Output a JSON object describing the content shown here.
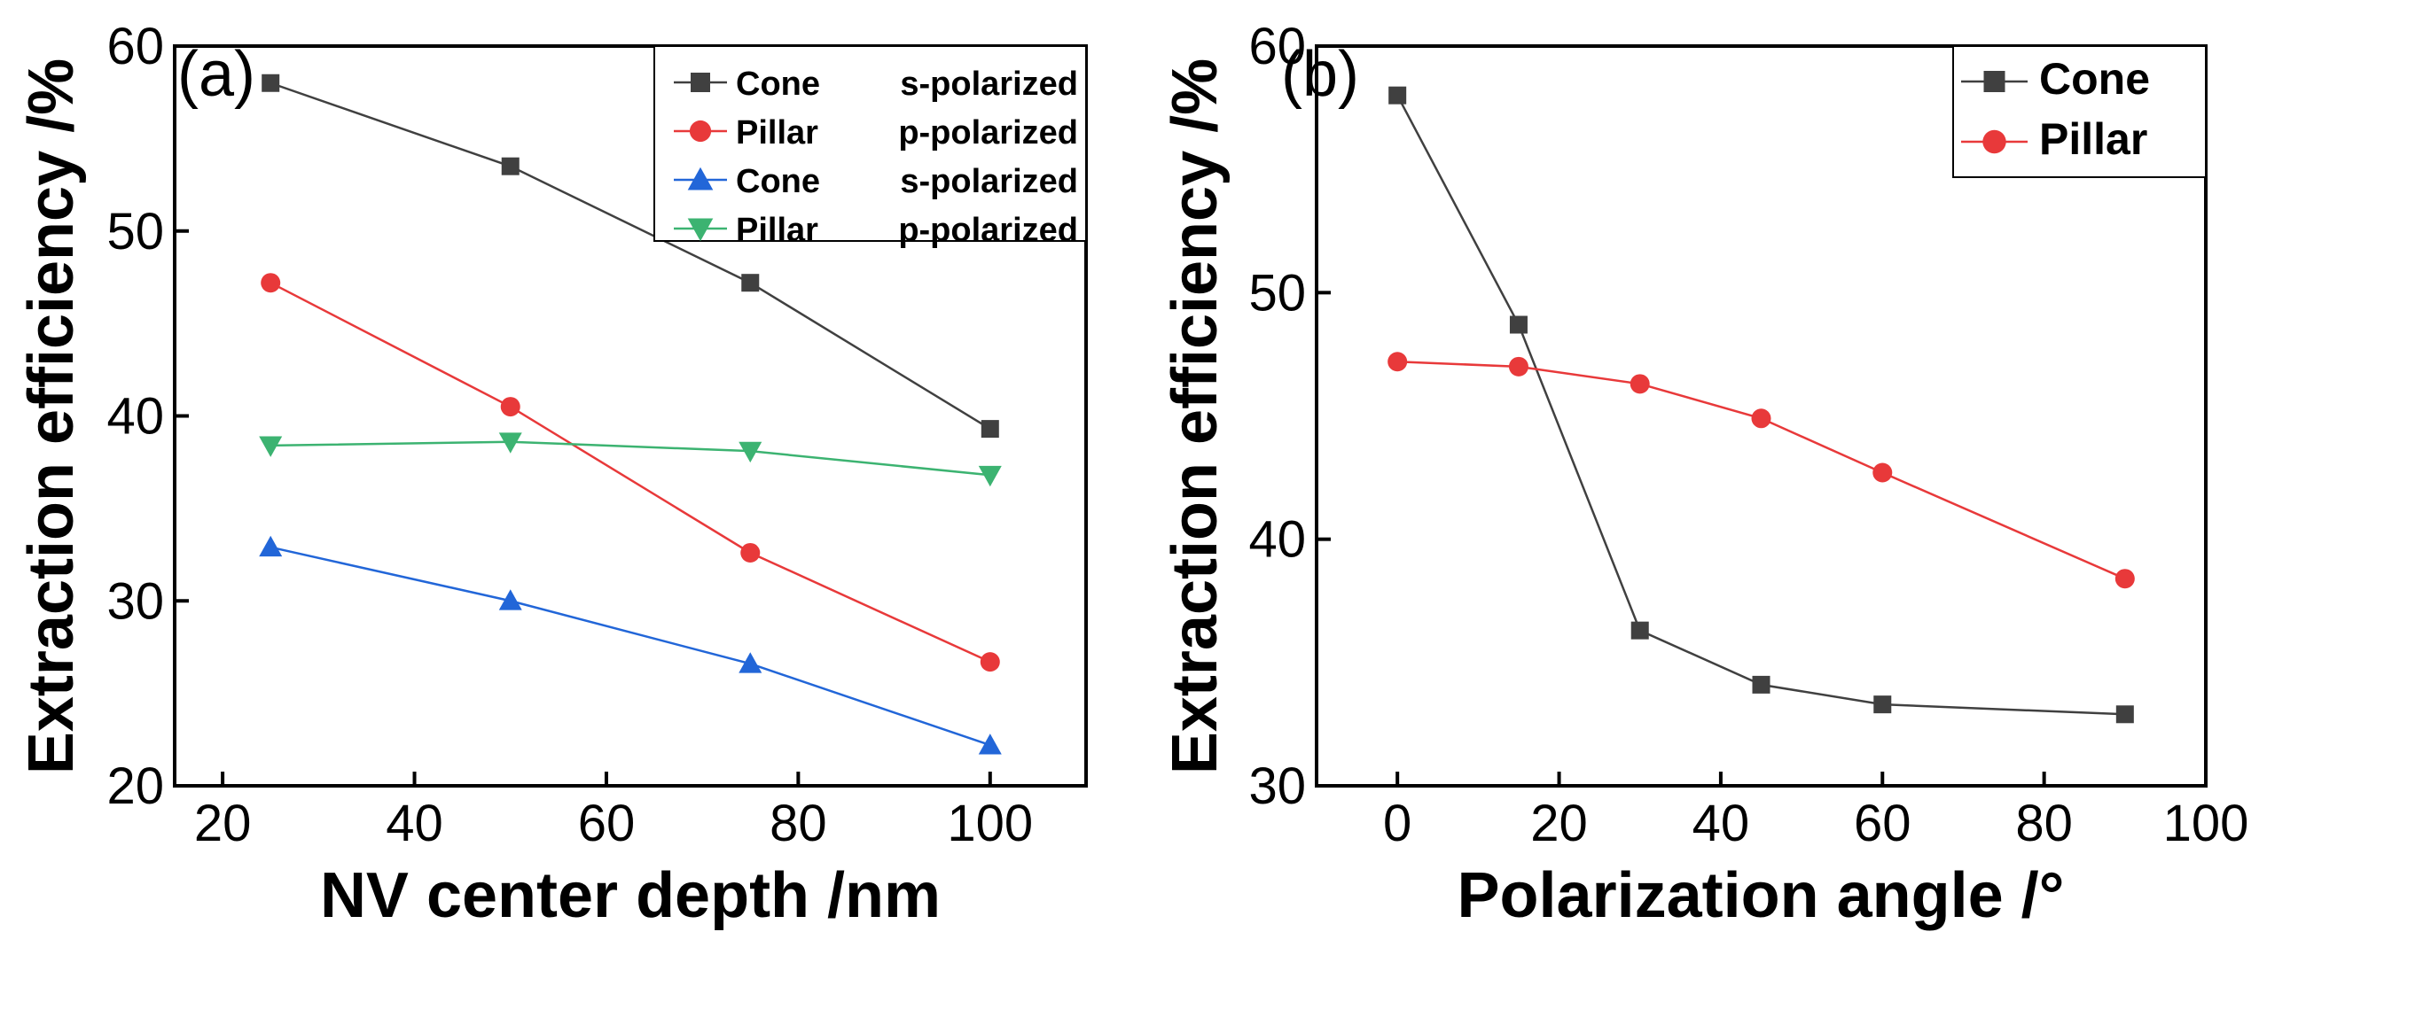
{
  "chart_data": [
    {
      "type": "line",
      "panel_label": "(a)",
      "xlabel": "NV center depth /nm",
      "ylabel": "Extraction efficiency /%",
      "xlim": [
        15,
        110
      ],
      "ylim": [
        20,
        60
      ],
      "xticks": [
        20,
        40,
        60,
        80,
        100
      ],
      "yticks": [
        20,
        30,
        40,
        50,
        60
      ],
      "xtick_labels": [
        "20",
        "40",
        "60",
        "80",
        "100"
      ],
      "ytick_labels": [
        "20",
        "30",
        "40",
        "50",
        "60"
      ],
      "legend_position": "top-right",
      "x": [
        25,
        50,
        75,
        100
      ],
      "series": [
        {
          "name": "Cone",
          "pol": "s-polarized",
          "color": "#404040",
          "marker": "square",
          "values": [
            58.0,
            53.5,
            47.2,
            39.3
          ]
        },
        {
          "name": "Pillar",
          "pol": "p-polarized",
          "color": "#e8393a",
          "marker": "circle",
          "values": [
            47.2,
            40.5,
            32.6,
            26.7
          ]
        },
        {
          "name": "Cone",
          "pol": "s-polarized",
          "color": "#2266d8",
          "marker": "triangle-up",
          "values": [
            32.9,
            30.0,
            26.6,
            22.2
          ]
        },
        {
          "name": "Pillar",
          "pol": "p-polarized",
          "color": "#3cb371",
          "marker": "triangle-down",
          "values": [
            38.4,
            38.6,
            38.1,
            36.8
          ]
        }
      ]
    },
    {
      "type": "line",
      "panel_label": "(b)",
      "xlabel": "Polarization angle /°",
      "ylabel": "Extraction efficiency /%",
      "xlim": [
        -10,
        100
      ],
      "ylim": [
        30,
        60
      ],
      "xticks": [
        0,
        20,
        40,
        60,
        80,
        100
      ],
      "yticks": [
        30,
        40,
        50,
        60
      ],
      "xtick_labels": [
        "0",
        "20",
        "40",
        "60",
        "80",
        "100"
      ],
      "ytick_labels": [
        "30",
        "40",
        "50",
        "60"
      ],
      "legend_position": "top-right",
      "x": [
        0,
        15,
        30,
        45,
        60,
        90
      ],
      "series": [
        {
          "name": "Cone",
          "color": "#404040",
          "marker": "square",
          "values": [
            58.0,
            48.7,
            36.3,
            34.1,
            33.3,
            32.9
          ]
        },
        {
          "name": "Pillar",
          "color": "#e8393a",
          "marker": "circle",
          "values": [
            47.2,
            47.0,
            46.3,
            44.9,
            42.7,
            38.4
          ]
        }
      ]
    }
  ]
}
